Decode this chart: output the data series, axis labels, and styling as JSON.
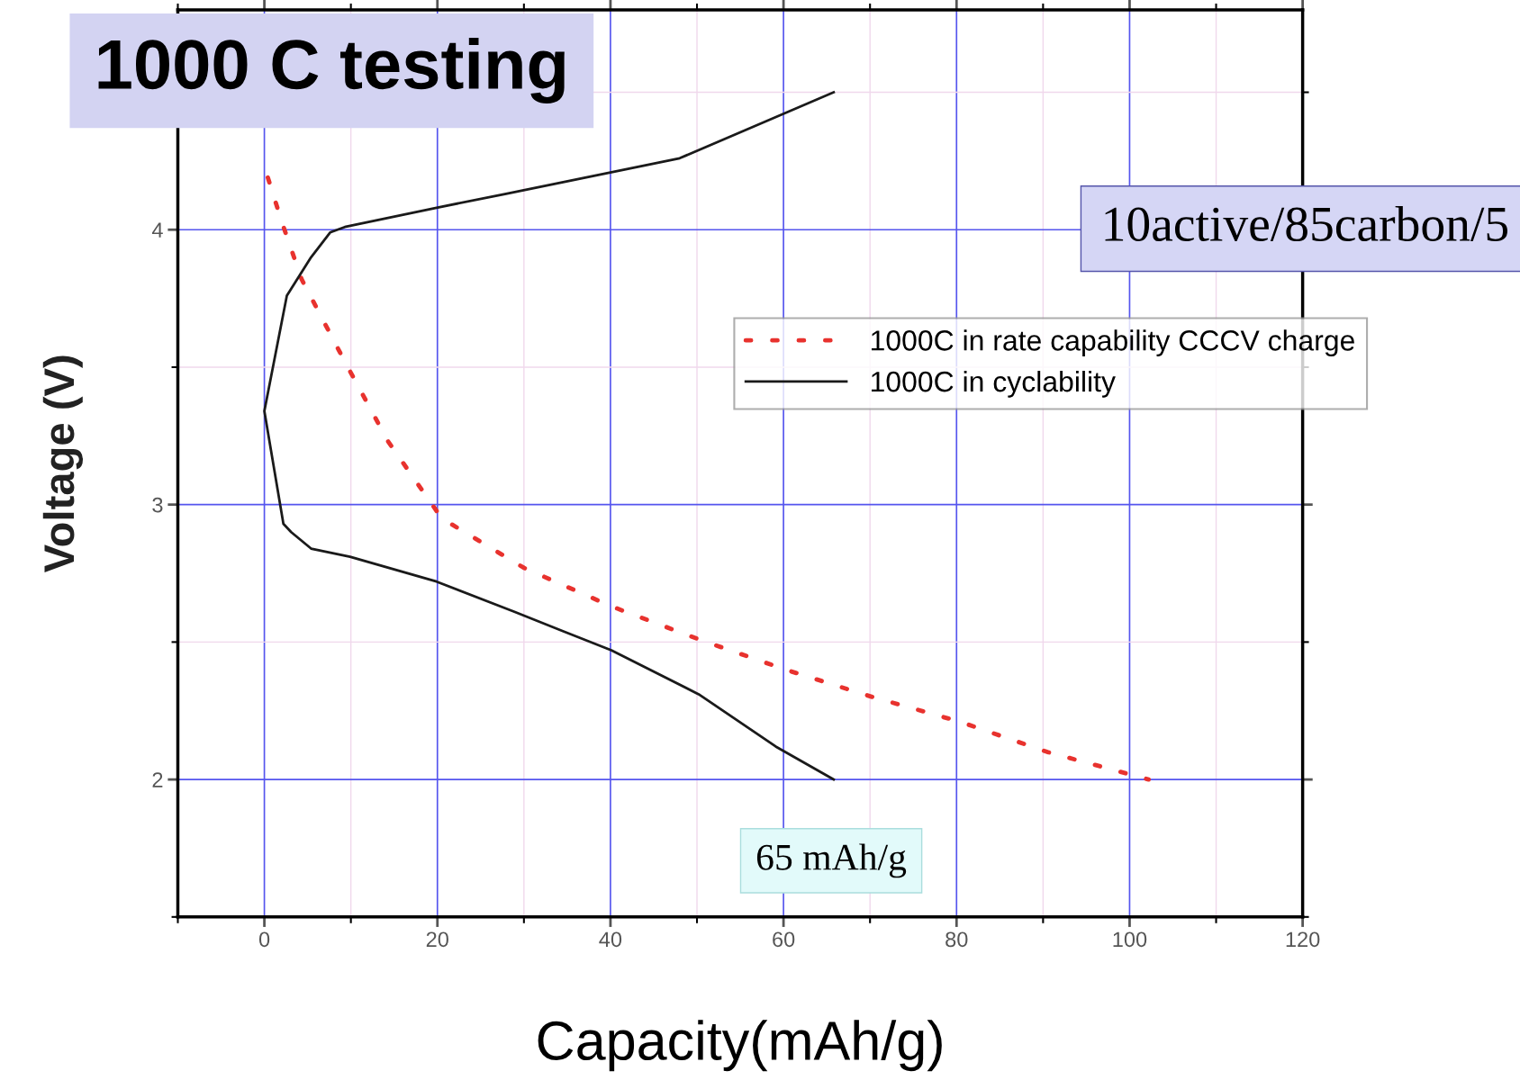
{
  "chart_data": {
    "type": "line",
    "title": "1000 C testing",
    "xlabel": "Capacity(mAh/g)",
    "ylabel": "Voltage (V)",
    "xlim": [
      -10,
      120
    ],
    "xticks": [
      0,
      20,
      40,
      60,
      80,
      100,
      120
    ],
    "ylim": [
      1.5,
      4.8
    ],
    "yticks": [
      2,
      3,
      4
    ],
    "grid": true,
    "legend": "right",
    "marker": "none",
    "annotations": [
      "10active/85carbon/5",
      {
        "text": "65 mAh/g",
        "x": 65.8,
        "y": 2.0
      }
    ],
    "series": [
      {
        "name": "1000C in rate capability CCCV charge",
        "color": "#e8322e",
        "line_style": "dotted",
        "x": [
          0.4,
          2,
          4.3,
          9.3,
          14.3,
          20.5,
          30,
          40.1,
          50.2,
          60.2,
          70.3,
          80.4,
          90.5,
          102.2
        ],
        "values": [
          4.19,
          4.03,
          3.82,
          3.52,
          3.23,
          2.95,
          2.77,
          2.63,
          2.51,
          2.4,
          2.3,
          2.21,
          2.1,
          2.0
        ]
      },
      {
        "name": "1000C in cyclability",
        "color": "#1a1a1a",
        "line_style": "solid",
        "x": [
          65.8,
          48,
          27.8,
          19.9,
          9.3,
          7.6,
          5.4,
          2.6,
          0,
          2.2,
          3.1,
          5.4,
          9.9,
          19.9,
          28.9,
          34.5,
          40.1,
          50.2,
          59.1,
          65.8
        ],
        "values": [
          4.5,
          4.26,
          4.13,
          4.08,
          4.01,
          3.99,
          3.9,
          3.76,
          3.34,
          2.93,
          2.9,
          2.84,
          2.81,
          2.72,
          2.61,
          2.54,
          2.47,
          2.31,
          2.12,
          2.0
        ]
      }
    ]
  }
}
